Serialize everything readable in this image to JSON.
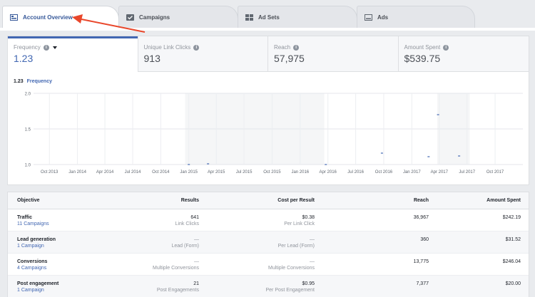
{
  "tabs": [
    {
      "label": "Account Overview",
      "icon": "overview-icon",
      "active": true
    },
    {
      "label": "Campaigns",
      "icon": "campaigns-icon",
      "active": false
    },
    {
      "label": "Ad Sets",
      "icon": "ad-sets-icon",
      "active": false
    },
    {
      "label": "Ads",
      "icon": "ads-icon",
      "active": false
    }
  ],
  "metrics": [
    {
      "label": "Frequency",
      "value": "1.23",
      "has_dropdown": true
    },
    {
      "label": "Unique Link Clicks",
      "value": "913"
    },
    {
      "label": "Reach",
      "value": "57,975"
    },
    {
      "label": "Amount Spent",
      "value": "$539.75"
    }
  ],
  "chart_header": {
    "value": "1.23",
    "metric": "Frequency"
  },
  "chart_data": {
    "type": "scatter",
    "title": "",
    "xlabel": "",
    "ylabel": "",
    "ylim": [
      1.0,
      2.0
    ],
    "yticks": [
      "2.0",
      "1.5",
      "1.0"
    ],
    "xticks": [
      "Oct 2013",
      "Jan 2014",
      "Apr 2014",
      "Jul 2014",
      "Oct 2014",
      "Jan 2015",
      "Apr 2015",
      "Jul 2015",
      "Oct 2015",
      "Jan 2016",
      "Apr 2016",
      "Jul 2016",
      "Oct 2016",
      "Jan 2017",
      "Apr 2017",
      "Jul 2017",
      "Oct 2017"
    ],
    "grid": true,
    "active_ranges": [
      [
        "2014-12-20",
        "2016-03-20"
      ],
      [
        "2017-03-25",
        "2017-07-10"
      ]
    ],
    "points": [
      {
        "x": "2015-01-01",
        "y": 1.0
      },
      {
        "x": "2015-03-05",
        "y": 1.01
      },
      {
        "x": "2016-03-25",
        "y": 1.0
      },
      {
        "x": "2016-09-25",
        "y": 1.16
      },
      {
        "x": "2017-02-25",
        "y": 1.11
      },
      {
        "x": "2017-03-28",
        "y": 1.7
      },
      {
        "x": "2017-06-05",
        "y": 1.12
      }
    ]
  },
  "table": {
    "headers": {
      "objective": "Objective",
      "results": "Results",
      "cpr": "Cost per Result",
      "reach": "Reach",
      "amount": "Amount Spent"
    },
    "rows": [
      {
        "objective": "Traffic",
        "campaigns": "11 Campaigns",
        "results": "641",
        "results_sub": "Link Clicks",
        "cpr": "$0.38",
        "cpr_sub": "Per Link Click",
        "reach": "36,967",
        "amount": "$242.19"
      },
      {
        "objective": "Lead generation",
        "campaigns": "1 Campaign",
        "results": "—",
        "results_sub": "Lead (Form)",
        "cpr": "—",
        "cpr_sub": "Per Lead (Form)",
        "reach": "360",
        "amount": "$31.52"
      },
      {
        "objective": "Conversions",
        "campaigns": "4 Campaigns",
        "results": "—",
        "results_sub": "Multiple Conversions",
        "cpr": "—",
        "cpr_sub": "Multiple Conversions",
        "reach": "13,775",
        "amount": "$246.04"
      },
      {
        "objective": "Post engagement",
        "campaigns": "1 Campaign",
        "results": "21",
        "results_sub": "Post Engagements",
        "cpr": "$0.95",
        "cpr_sub": "Per Post Engagement",
        "reach": "7,377",
        "amount": "$20.00"
      }
    ]
  },
  "colors": {
    "accent": "#4267b2",
    "annotation_arrow": "#e9472b",
    "chart_point": "#4267b2"
  }
}
